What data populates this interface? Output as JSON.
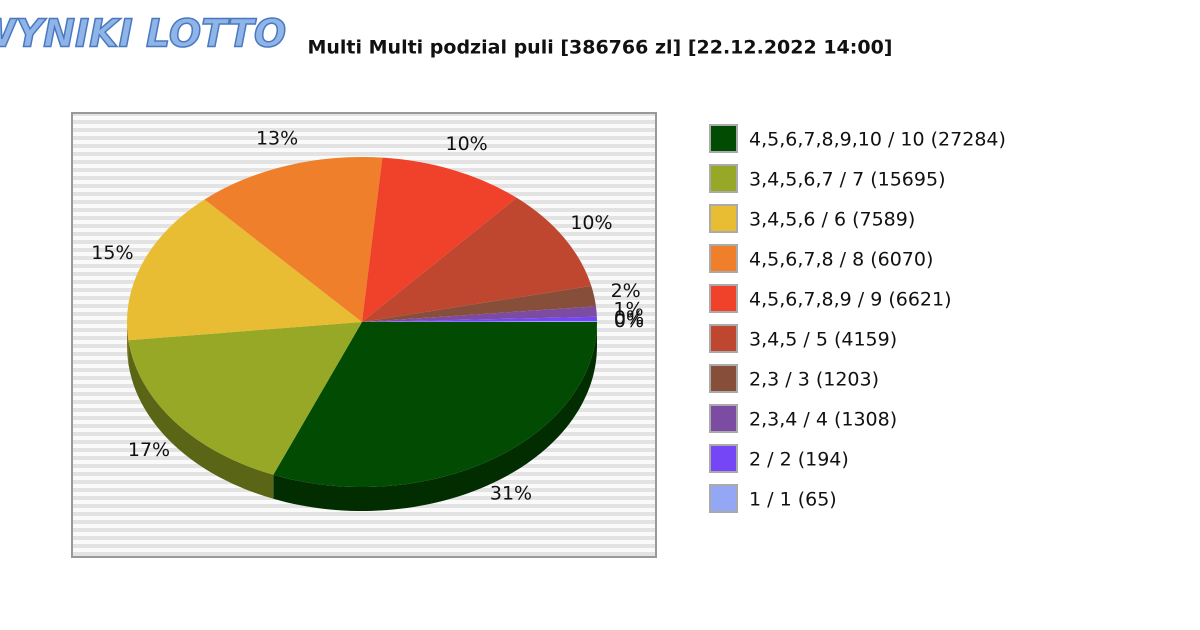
{
  "logo": "WYNIKI LOTTO",
  "chart_data": {
    "type": "pie",
    "title": "Multi Multi podzial puli [386766 zl] [22.12.2022 14:00]",
    "categories": [
      "4,5,6,7,8,9,10 / 10 (27284)",
      "3,4,5,6,7 / 7 (15695)",
      "3,4,5,6 / 6 (7589)",
      "4,5,6,7,8 / 8 (6070)",
      "4,5,6,7,8,9 / 9 (6621)",
      "3,4,5 / 5 (4159)",
      "2,3 / 3 (1203)",
      "2,3,4 / 4 (1308)",
      "2 / 2 (194)",
      "1 / 1 (65)"
    ],
    "values": [
      31,
      17,
      15,
      13,
      10,
      10,
      2,
      1,
      0.4,
      0.1
    ],
    "value_labels": [
      "31%",
      "17%",
      "15%",
      "13%",
      "10%",
      "10%",
      "2%",
      "1%",
      "0%",
      "0%"
    ],
    "colors": [
      "#024b02",
      "#96a825",
      "#e8bc33",
      "#ef7f2a",
      "#f0412a",
      "#bf4730",
      "#874f3a",
      "#7c4ca3",
      "#7446f5",
      "#93a7f5"
    ]
  }
}
